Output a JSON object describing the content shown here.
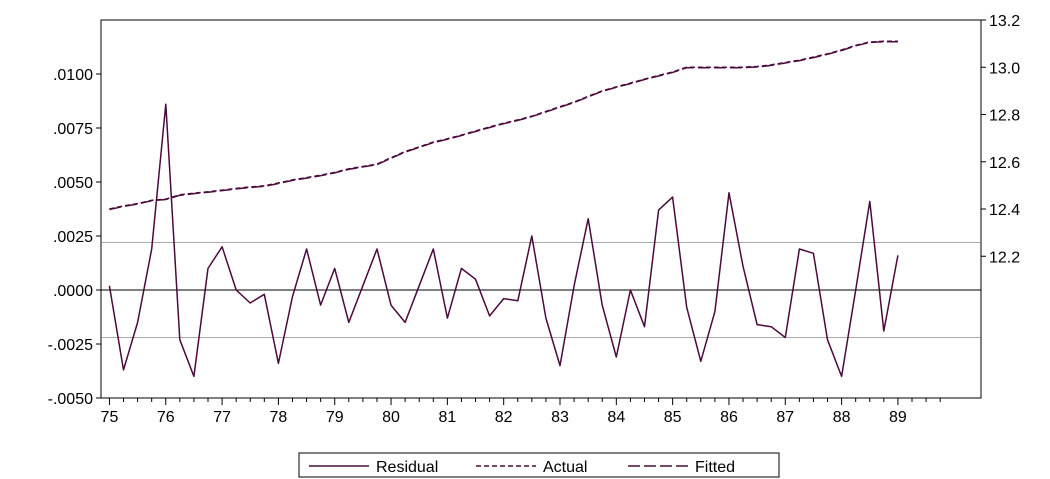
{
  "chart_data": {
    "type": "line",
    "title": "",
    "xlabel": "",
    "ylabel_left": "",
    "ylabel_right": "",
    "x_labels": [
      "75",
      "76",
      "77",
      "78",
      "79",
      "80",
      "81",
      "82",
      "83",
      "84",
      "85",
      "86",
      "87",
      "88",
      "89"
    ],
    "left_axis": {
      "ylim": [
        -0.005,
        0.0125
      ],
      "ticks": [
        -0.005,
        -0.0025,
        0.0,
        0.0025,
        0.005,
        0.0075,
        0.01
      ],
      "tick_labels": [
        "-.0050",
        "-.0025",
        ".0000",
        ".0025",
        ".0050",
        ".0075",
        ".0100"
      ]
    },
    "right_axis": {
      "ylim": [
        11.6,
        13.2
      ],
      "ticks": [
        12.2,
        12.4,
        12.6,
        12.8,
        13.0,
        13.2
      ],
      "tick_labels": [
        "12.2",
        "12.4",
        "12.6",
        "12.8",
        "13.0",
        "13.2"
      ]
    },
    "reference_lines_left_axis": [
      0.0022,
      0.0,
      -0.0022
    ],
    "quarters_per_year": 4,
    "series": [
      {
        "name": "Residual",
        "axis": "left",
        "style": "solid",
        "color": "#4b0a3c",
        "values": [
          0.0002,
          -0.0037,
          -0.0015,
          0.0019,
          0.0086,
          -0.0023,
          -0.004,
          0.001,
          0.002,
          0.0,
          -0.0006,
          -0.0002,
          -0.0034,
          -0.0003,
          0.0019,
          -0.0007,
          0.001,
          -0.0015,
          0.0002,
          0.0019,
          -0.0007,
          -0.0015,
          0.0002,
          0.0019,
          -0.0013,
          0.001,
          0.0005,
          -0.0012,
          -0.0004,
          -0.0005,
          0.0025,
          -0.0013,
          -0.0035,
          0.0002,
          0.0033,
          -0.0007,
          -0.0031,
          0.0,
          -0.0017,
          0.0037,
          0.0043,
          -0.0008,
          -0.0033,
          -0.001,
          0.0045,
          0.0011,
          -0.0016,
          -0.0017,
          -0.0022,
          0.0019,
          0.0017,
          -0.0023,
          -0.004,
          0.0,
          0.0041,
          -0.0019,
          0.0016
        ]
      },
      {
        "name": "Actual",
        "axis": "right",
        "style": "dashed-short",
        "color": "#4b0a3c",
        "values": [
          12.4,
          12.413,
          12.423,
          12.437,
          12.442,
          12.46,
          12.467,
          12.473,
          12.48,
          12.487,
          12.493,
          12.498,
          12.51,
          12.523,
          12.533,
          12.543,
          12.555,
          12.57,
          12.58,
          12.59,
          12.617,
          12.643,
          12.663,
          12.683,
          12.697,
          12.713,
          12.73,
          12.747,
          12.763,
          12.777,
          12.793,
          12.813,
          12.833,
          12.853,
          12.877,
          12.9,
          12.917,
          12.933,
          12.95,
          12.965,
          12.98,
          13.0,
          13.0,
          13.0,
          13.0,
          13.0,
          13.003,
          13.01,
          13.02,
          13.03,
          13.043,
          13.057,
          13.073,
          13.093,
          13.107,
          13.11,
          13.11
        ]
      },
      {
        "name": "Fitted",
        "axis": "right",
        "style": "dashed-long",
        "color": "#4b0a3c",
        "values": [
          12.398,
          12.411,
          12.421,
          12.435,
          12.44,
          12.458,
          12.465,
          12.471,
          12.478,
          12.485,
          12.491,
          12.496,
          12.508,
          12.521,
          12.531,
          12.541,
          12.553,
          12.568,
          12.578,
          12.588,
          12.615,
          12.641,
          12.661,
          12.681,
          12.695,
          12.711,
          12.728,
          12.745,
          12.761,
          12.775,
          12.791,
          12.811,
          12.831,
          12.851,
          12.875,
          12.898,
          12.915,
          12.931,
          12.948,
          12.963,
          12.978,
          12.998,
          12.998,
          12.998,
          12.998,
          12.998,
          13.001,
          13.008,
          13.018,
          13.028,
          13.041,
          13.055,
          13.071,
          13.091,
          13.105,
          13.108,
          13.108
        ]
      }
    ],
    "legend": {
      "position": "bottom-center",
      "entries": [
        "Residual",
        "Actual",
        "Fitted"
      ]
    },
    "grid": false
  }
}
